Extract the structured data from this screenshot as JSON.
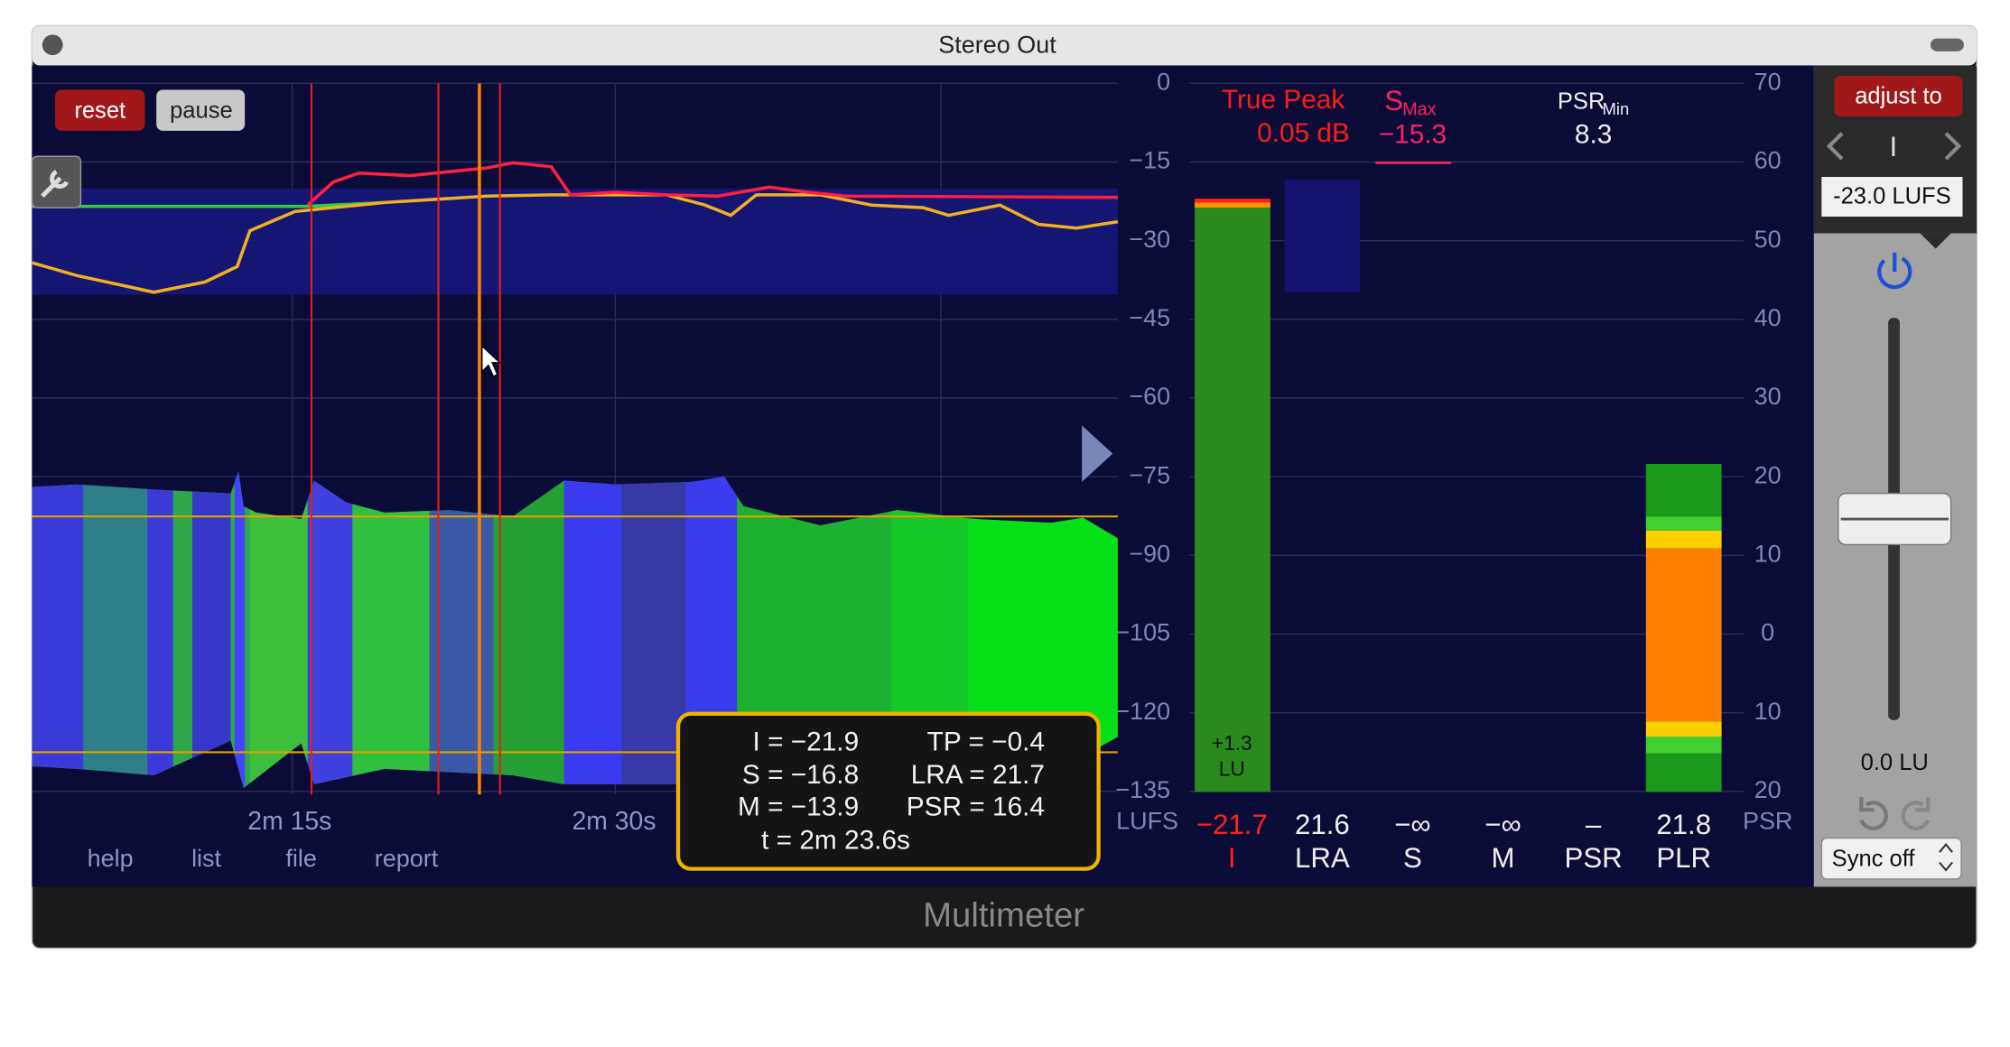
{
  "window": {
    "title": "Stereo Out",
    "footer": "Multimeter"
  },
  "buttons": {
    "reset": "reset",
    "pause": "pause",
    "adjust": "adjust to",
    "target": "-23.0 LUFS",
    "sync": "Sync off"
  },
  "menu": [
    "help",
    "list",
    "file",
    "report"
  ],
  "time_axis": [
    "2m 15s",
    "2m 30s"
  ],
  "lufs_axis": [
    "0",
    "−15",
    "−30",
    "−45",
    "−60",
    "−75",
    "−90",
    "−105",
    "−120",
    "−135"
  ],
  "lufs_unit": "LUFS",
  "psr_axis": [
    "70",
    "60",
    "50",
    "40",
    "30",
    "20",
    "10",
    "0",
    "10",
    "20"
  ],
  "psr_unit": "PSR",
  "peaks": {
    "true_peak_label": "True Peak",
    "true_peak_value": "0.05 dB",
    "smax_label": "S",
    "smax_sub": "Max",
    "smax_value": "−15.3",
    "psr_label": "PSR",
    "psr_sub": "Min",
    "psr_value": "8.3"
  },
  "meters": [
    {
      "value": "−21.7",
      "label": "I"
    },
    {
      "value": "21.6",
      "label": "LRA"
    },
    {
      "value": "−∞",
      "label": "S"
    },
    {
      "value": "−∞",
      "label": "M"
    },
    {
      "value": "–",
      "label": "PSR"
    },
    {
      "value": "21.8",
      "label": "PLR"
    }
  ],
  "bar_note": [
    "+1.3",
    "LU"
  ],
  "fader": {
    "symbol": "I",
    "value": "0.0 LU"
  },
  "tooltip": [
    "I = −21.9",
    "TP = −0.4",
    "S = −16.8",
    "LRA = 21.7",
    "M = −13.9",
    "PSR = 16.4",
    "t = 2m 23.6s"
  ]
}
